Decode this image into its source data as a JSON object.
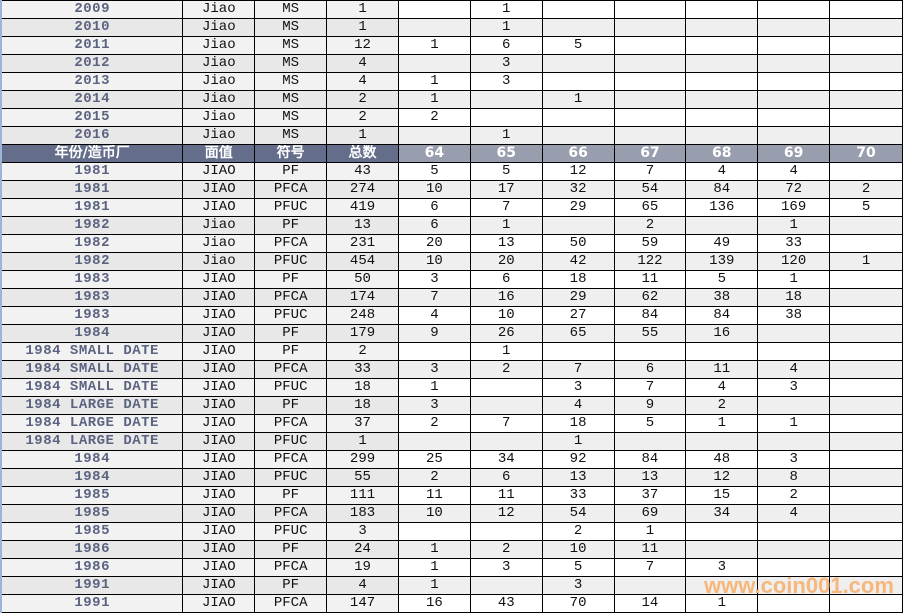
{
  "header": {
    "year": "年份/造币厂",
    "denomination": "面值",
    "symbol": "符号",
    "total": "总数",
    "grades": [
      "64",
      "65",
      "66",
      "67",
      "68",
      "69",
      "70"
    ]
  },
  "rows_top": [
    {
      "year": "2009",
      "denom": "Jiao",
      "sym": "MS",
      "total": "1",
      "grades": [
        "",
        "1",
        "",
        "",
        "",
        "",
        ""
      ]
    },
    {
      "year": "2010",
      "denom": "Jiao",
      "sym": "MS",
      "total": "1",
      "grades": [
        "",
        "1",
        "",
        "",
        "",
        "",
        ""
      ]
    },
    {
      "year": "2011",
      "denom": "Jiao",
      "sym": "MS",
      "total": "12",
      "grades": [
        "1",
        "6",
        "5",
        "",
        "",
        "",
        ""
      ]
    },
    {
      "year": "2012",
      "denom": "Jiao",
      "sym": "MS",
      "total": "4",
      "grades": [
        "",
        "3",
        "",
        "",
        "",
        "",
        ""
      ]
    },
    {
      "year": "2013",
      "denom": "Jiao",
      "sym": "MS",
      "total": "4",
      "grades": [
        "1",
        "3",
        "",
        "",
        "",
        "",
        ""
      ]
    },
    {
      "year": "2014",
      "denom": "Jiao",
      "sym": "MS",
      "total": "2",
      "grades": [
        "1",
        "",
        "1",
        "",
        "",
        "",
        ""
      ]
    },
    {
      "year": "2015",
      "denom": "Jiao",
      "sym": "MS",
      "total": "2",
      "grades": [
        "2",
        "",
        "",
        "",
        "",
        "",
        ""
      ]
    },
    {
      "year": "2016",
      "denom": "Jiao",
      "sym": "MS",
      "total": "1",
      "grades": [
        "",
        "1",
        "",
        "",
        "",
        "",
        ""
      ]
    }
  ],
  "rows_bottom": [
    {
      "year": "1981",
      "denom": "JIAO",
      "sym": "PF",
      "total": "43",
      "grades": [
        "5",
        "5",
        "12",
        "7",
        "4",
        "4",
        ""
      ]
    },
    {
      "year": "1981",
      "denom": "JIAO",
      "sym": "PFCA",
      "total": "274",
      "grades": [
        "10",
        "17",
        "32",
        "54",
        "84",
        "72",
        "2"
      ]
    },
    {
      "year": "1981",
      "denom": "JIAO",
      "sym": "PFUC",
      "total": "419",
      "grades": [
        "6",
        "7",
        "29",
        "65",
        "136",
        "169",
        "5"
      ]
    },
    {
      "year": "1982",
      "denom": "Jiao",
      "sym": "PF",
      "total": "13",
      "grades": [
        "6",
        "1",
        "",
        "2",
        "",
        "1",
        ""
      ]
    },
    {
      "year": "1982",
      "denom": "Jiao",
      "sym": "PFCA",
      "total": "231",
      "grades": [
        "20",
        "13",
        "50",
        "59",
        "49",
        "33",
        ""
      ]
    },
    {
      "year": "1982",
      "denom": "Jiao",
      "sym": "PFUC",
      "total": "454",
      "grades": [
        "10",
        "20",
        "42",
        "122",
        "139",
        "120",
        "1"
      ]
    },
    {
      "year": "1983",
      "denom": "JIAO",
      "sym": "PF",
      "total": "50",
      "grades": [
        "3",
        "6",
        "18",
        "11",
        "5",
        "1",
        ""
      ]
    },
    {
      "year": "1983",
      "denom": "JIAO",
      "sym": "PFCA",
      "total": "174",
      "grades": [
        "7",
        "16",
        "29",
        "62",
        "38",
        "18",
        ""
      ]
    },
    {
      "year": "1983",
      "denom": "JIAO",
      "sym": "PFUC",
      "total": "248",
      "grades": [
        "4",
        "10",
        "27",
        "84",
        "84",
        "38",
        ""
      ]
    },
    {
      "year": "1984",
      "denom": "JIAO",
      "sym": "PF",
      "total": "179",
      "grades": [
        "9",
        "26",
        "65",
        "55",
        "16",
        "",
        ""
      ]
    },
    {
      "year": "1984 SMALL DATE",
      "denom": "JIAO",
      "sym": "PF",
      "total": "2",
      "grades": [
        "",
        "1",
        "",
        "",
        "",
        "",
        ""
      ]
    },
    {
      "year": "1984 SMALL DATE",
      "denom": "JIAO",
      "sym": "PFCA",
      "total": "33",
      "grades": [
        "3",
        "2",
        "7",
        "6",
        "11",
        "4",
        ""
      ]
    },
    {
      "year": "1984 SMALL DATE",
      "denom": "JIAO",
      "sym": "PFUC",
      "total": "18",
      "grades": [
        "1",
        "",
        "3",
        "7",
        "4",
        "3",
        ""
      ]
    },
    {
      "year": "1984 LARGE DATE",
      "denom": "JIAO",
      "sym": "PF",
      "total": "18",
      "grades": [
        "3",
        "",
        "4",
        "9",
        "2",
        "",
        ""
      ]
    },
    {
      "year": "1984 LARGE DATE",
      "denom": "JIAO",
      "sym": "PFCA",
      "total": "37",
      "grades": [
        "2",
        "7",
        "18",
        "5",
        "1",
        "1",
        ""
      ]
    },
    {
      "year": "1984 LARGE DATE",
      "denom": "JIAO",
      "sym": "PFUC",
      "total": "1",
      "grades": [
        "",
        "",
        "1",
        "",
        "",
        "",
        ""
      ]
    },
    {
      "year": "1984",
      "denom": "JIAO",
      "sym": "PFCA",
      "total": "299",
      "grades": [
        "25",
        "34",
        "92",
        "84",
        "48",
        "3",
        ""
      ]
    },
    {
      "year": "1984",
      "denom": "JIAO",
      "sym": "PFUC",
      "total": "55",
      "grades": [
        "2",
        "6",
        "13",
        "13",
        "12",
        "8",
        ""
      ]
    },
    {
      "year": "1985",
      "denom": "JIAO",
      "sym": "PF",
      "total": "111",
      "grades": [
        "11",
        "11",
        "33",
        "37",
        "15",
        "2",
        ""
      ]
    },
    {
      "year": "1985",
      "denom": "JIAO",
      "sym": "PFCA",
      "total": "183",
      "grades": [
        "10",
        "12",
        "54",
        "69",
        "34",
        "4",
        ""
      ]
    },
    {
      "year": "1985",
      "denom": "JIAO",
      "sym": "PFUC",
      "total": "3",
      "grades": [
        "",
        "",
        "2",
        "1",
        "",
        "",
        ""
      ]
    },
    {
      "year": "1986",
      "denom": "JIAO",
      "sym": "PF",
      "total": "24",
      "grades": [
        "1",
        "2",
        "10",
        "11",
        "",
        "",
        ""
      ]
    },
    {
      "year": "1986",
      "denom": "JIAO",
      "sym": "PFCA",
      "total": "19",
      "grades": [
        "1",
        "3",
        "5",
        "7",
        "3",
        "",
        ""
      ]
    },
    {
      "year": "1991",
      "denom": "JIAO",
      "sym": "PF",
      "total": "4",
      "grades": [
        "1",
        "",
        "3",
        "",
        "",
        "",
        ""
      ]
    },
    {
      "year": "1991",
      "denom": "JIAO",
      "sym": "PFCA",
      "total": "147",
      "grades": [
        "16",
        "43",
        "70",
        "14",
        "1",
        "",
        ""
      ]
    }
  ],
  "watermark": "www.coin001.com"
}
